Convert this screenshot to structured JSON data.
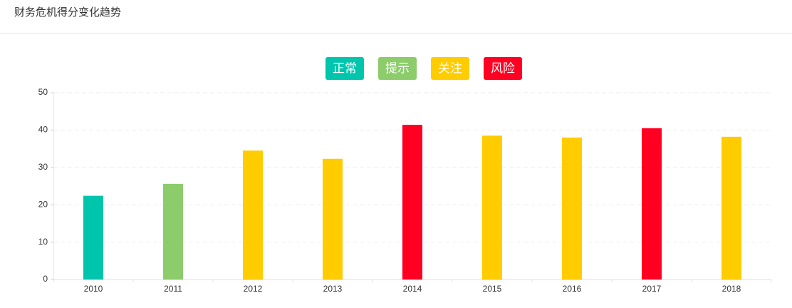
{
  "chart_data": {
    "type": "bar",
    "title": "财务危机得分变化趋势",
    "categories": [
      "2010",
      "2011",
      "2012",
      "2013",
      "2014",
      "2015",
      "2016",
      "2017",
      "2018"
    ],
    "series": [
      {
        "name": "正常",
        "color": "#00c5ad",
        "values": [
          22.4,
          null,
          null,
          null,
          null,
          null,
          null,
          null,
          null
        ]
      },
      {
        "name": "提示",
        "color": "#8ccc6a",
        "values": [
          null,
          25.6,
          null,
          null,
          null,
          null,
          null,
          null,
          null
        ]
      },
      {
        "name": "关注",
        "color": "#ffcc00",
        "values": [
          null,
          null,
          34.5,
          32.3,
          null,
          38.5,
          38.0,
          null,
          38.2
        ]
      },
      {
        "name": "风险",
        "color": "#ff0022",
        "values": [
          null,
          null,
          null,
          null,
          41.4,
          null,
          null,
          40.5,
          null
        ]
      }
    ],
    "ylim": [
      0,
      50
    ],
    "yticks": [
      0,
      10,
      20,
      30,
      40,
      50
    ],
    "grid": true
  }
}
